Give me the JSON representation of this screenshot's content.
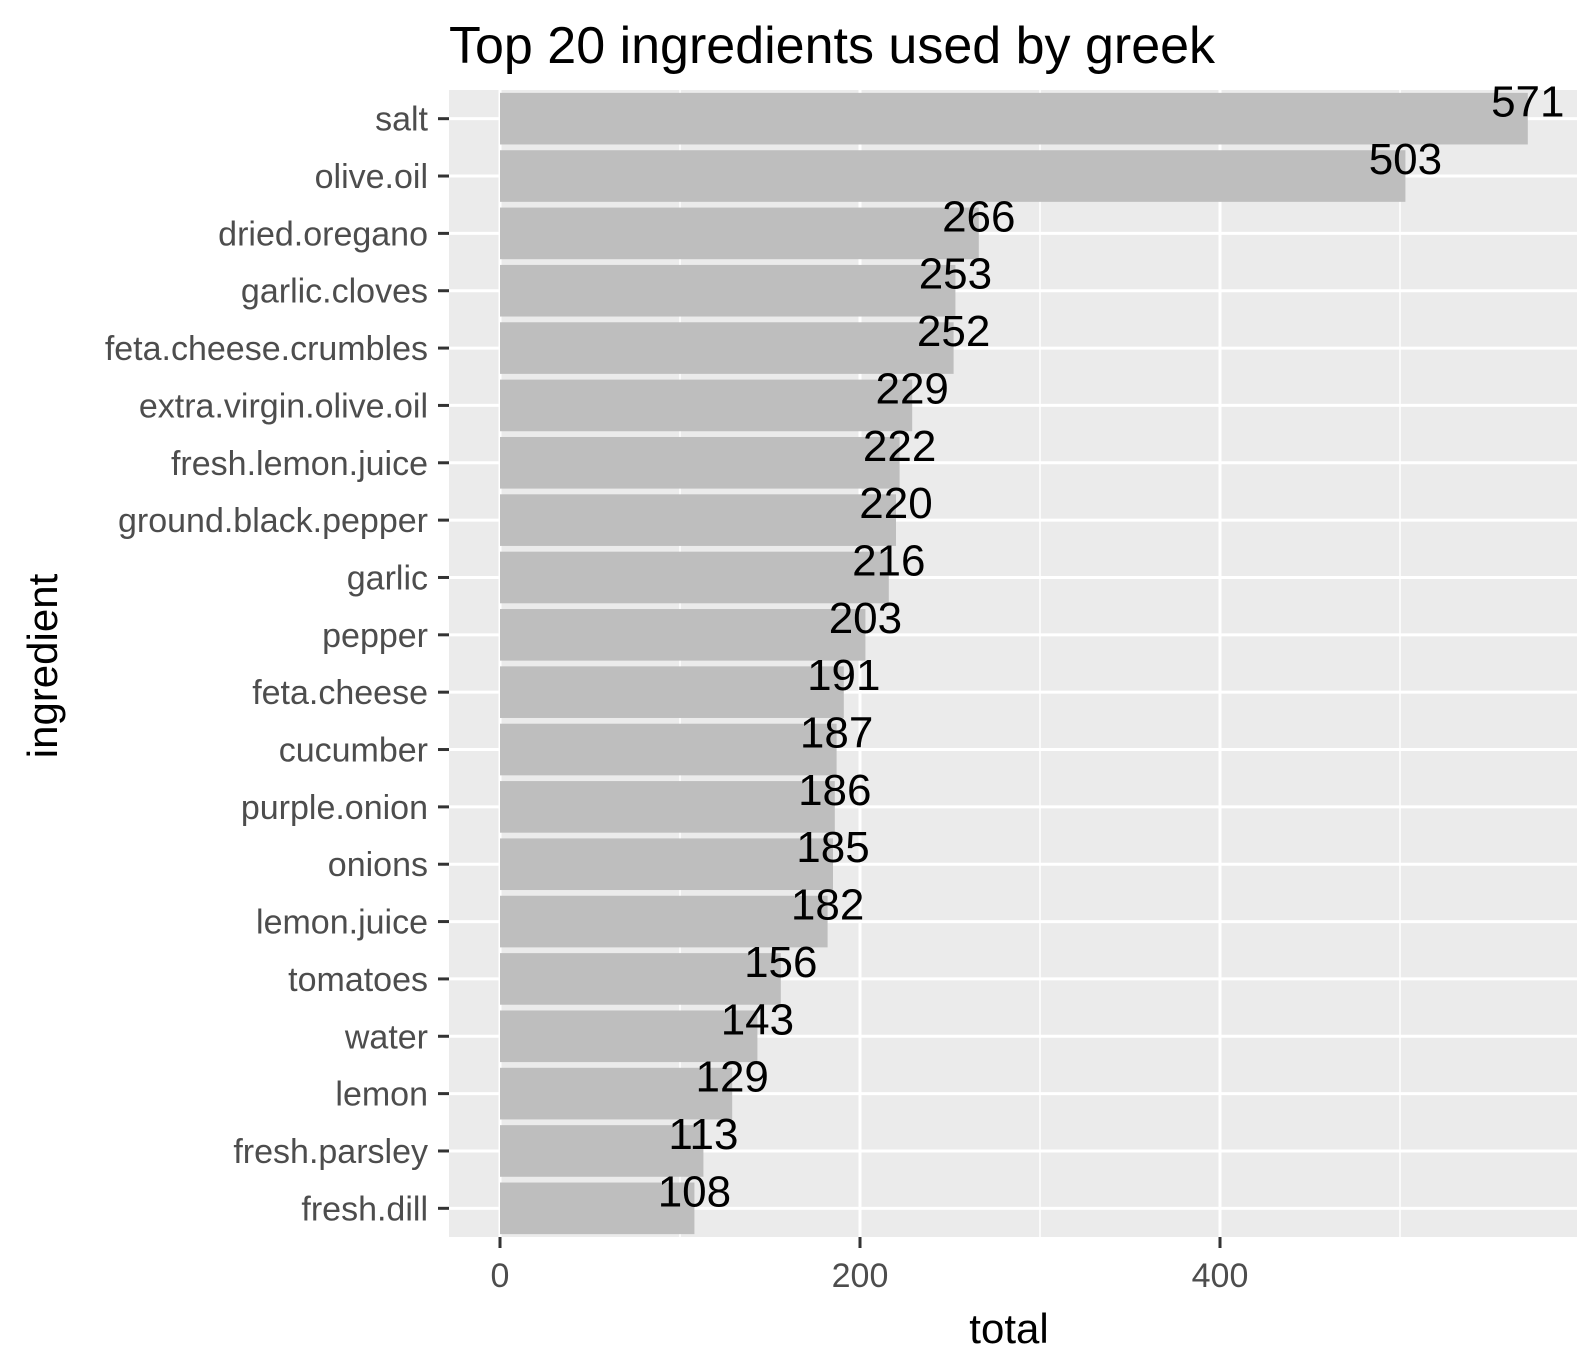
{
  "chart_data": {
    "type": "bar",
    "orientation": "horizontal",
    "title": "Top 20 ingredients used by greek",
    "xlabel": "total",
    "ylabel": "ingredient",
    "xlim": [
      0,
      600
    ],
    "xticks": [
      0,
      200,
      400
    ],
    "grid": true,
    "legend": "none",
    "categories": [
      "salt",
      "olive.oil",
      "dried.oregano",
      "garlic.cloves",
      "feta.cheese.crumbles",
      "extra.virgin.olive.oil",
      "fresh.lemon.juice",
      "ground.black.pepper",
      "garlic",
      "pepper",
      "feta.cheese",
      "cucumber",
      "purple.onion",
      "onions",
      "lemon.juice",
      "tomatoes",
      "water",
      "lemon",
      "fresh.parsley",
      "fresh.dill"
    ],
    "values": [
      571,
      503,
      266,
      253,
      252,
      229,
      222,
      220,
      216,
      203,
      191,
      187,
      186,
      185,
      182,
      156,
      143,
      129,
      113,
      108
    ],
    "colors": {
      "bar": "#bebebe",
      "panel": "#ebebeb",
      "grid": "#ffffff",
      "tick_text": "#4d4d4d",
      "label_text": "#000000"
    }
  }
}
